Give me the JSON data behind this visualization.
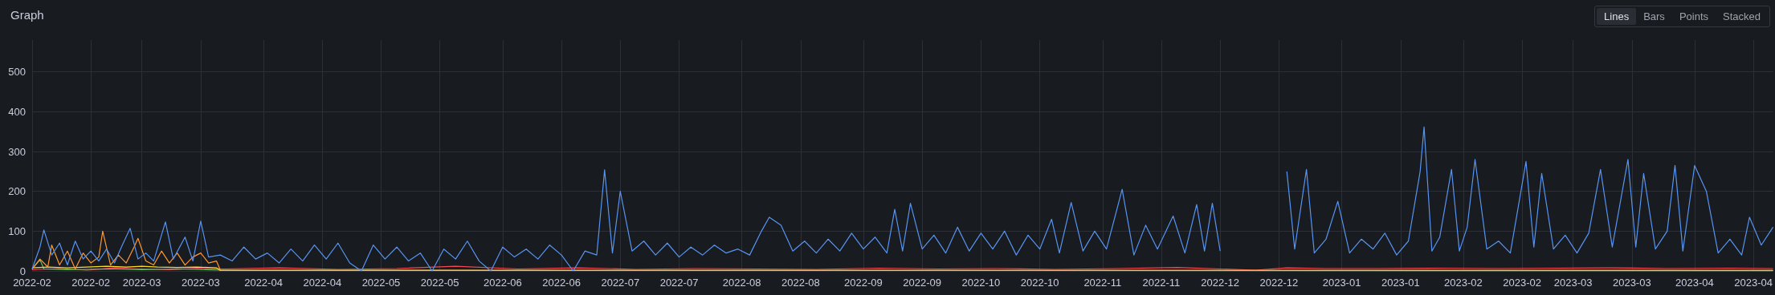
{
  "chart_data": {
    "type": "line",
    "title": "Graph",
    "annotations": [
      "Lines",
      "Bars",
      "Points",
      "Stacked"
    ],
    "xlim": [
      "2022-02-01",
      "2023-04-21"
    ],
    "xticks": [
      {
        "value": "2022-02-01",
        "label": "2022-02"
      },
      {
        "value": "2022-02-16",
        "label": "2022-02"
      },
      {
        "value": "2022-03-01",
        "label": "2022-03"
      },
      {
        "value": "2022-03-16",
        "label": "2022-03"
      },
      {
        "value": "2022-04-01",
        "label": "2022-04"
      },
      {
        "value": "2022-04-16",
        "label": "2022-04"
      },
      {
        "value": "2022-05-01",
        "label": "2022-05"
      },
      {
        "value": "2022-05-16",
        "label": "2022-05"
      },
      {
        "value": "2022-06-01",
        "label": "2022-06"
      },
      {
        "value": "2022-06-16",
        "label": "2022-06"
      },
      {
        "value": "2022-07-01",
        "label": "2022-07"
      },
      {
        "value": "2022-07-16",
        "label": "2022-07"
      },
      {
        "value": "2022-08-01",
        "label": "2022-08"
      },
      {
        "value": "2022-08-16",
        "label": "2022-08"
      },
      {
        "value": "2022-09-01",
        "label": "2022-09"
      },
      {
        "value": "2022-09-16",
        "label": "2022-09"
      },
      {
        "value": "2022-10-01",
        "label": "2022-10"
      },
      {
        "value": "2022-10-16",
        "label": "2022-10"
      },
      {
        "value": "2022-11-01",
        "label": "2022-11"
      },
      {
        "value": "2022-11-16",
        "label": "2022-11"
      },
      {
        "value": "2022-12-01",
        "label": "2022-12"
      },
      {
        "value": "2022-12-16",
        "label": "2022-12"
      },
      {
        "value": "2023-01-01",
        "label": "2023-01"
      },
      {
        "value": "2023-01-16",
        "label": "2023-01"
      },
      {
        "value": "2023-02-01",
        "label": "2023-02"
      },
      {
        "value": "2023-02-16",
        "label": "2023-02"
      },
      {
        "value": "2023-03-01",
        "label": "2023-03"
      },
      {
        "value": "2023-03-16",
        "label": "2023-03"
      },
      {
        "value": "2023-04-01",
        "label": "2023-04"
      },
      {
        "value": "2023-04-16",
        "label": "2023-04"
      }
    ],
    "ylim": [
      0,
      580
    ],
    "yticks": [
      0,
      100,
      200,
      300,
      400,
      500
    ],
    "grid": true,
    "marker": "none",
    "line_style": "solid",
    "series": [
      {
        "color": "#f2495c",
        "x": [
          "2022-02-01",
          "2022-02-08",
          "2022-02-15",
          "2022-02-22",
          "2022-03-01",
          "2022-03-08",
          "2022-03-15",
          "2022-03-22",
          "2022-04-05",
          "2022-04-20",
          "2022-05-05",
          "2022-05-20",
          "2022-06-05",
          "2022-06-20",
          "2022-07-05",
          "2022-07-20",
          "2022-08-05",
          "2022-08-20",
          "2022-09-05",
          "2022-09-20",
          "2022-10-05",
          "2022-10-20",
          "2022-11-05",
          "2022-11-20",
          "2022-12-01",
          "2022-12-10",
          "2022-12-18",
          "2022-12-28",
          "2023-01-10",
          "2023-01-25",
          "2023-02-10",
          "2023-02-25",
          "2023-03-10",
          "2023-03-25",
          "2023-04-10",
          "2023-04-21"
        ],
        "values": [
          3,
          6,
          2,
          8,
          5,
          3,
          7,
          5,
          8,
          4,
          6,
          12,
          5,
          8,
          4,
          6,
          5,
          4,
          7,
          5,
          6,
          4,
          6,
          9,
          5,
          2,
          8,
          6,
          6,
          7,
          6,
          7,
          8,
          6,
          7,
          6
        ]
      },
      {
        "color": "#73bf69",
        "x": [
          "2022-02-01",
          "2022-02-03",
          "2022-02-04",
          "2022-02-10",
          "2022-02-20",
          "2022-03-01",
          "2022-03-10",
          "2022-03-21",
          "2023-04-21"
        ],
        "values": [
          5,
          28,
          5,
          3,
          5,
          3,
          5,
          2,
          0
        ]
      },
      {
        "color": "#fade2a",
        "x": [
          "2022-02-01",
          "2022-02-05",
          "2022-02-10",
          "2022-02-15",
          "2022-02-20",
          "2022-02-25",
          "2022-03-01",
          "2022-03-05",
          "2022-03-10",
          "2022-03-15",
          "2022-03-20",
          "2022-03-21",
          "2022-08-01",
          "2022-12-01",
          "2023-04-21"
        ],
        "values": [
          8,
          10,
          8,
          10,
          12,
          10,
          12,
          10,
          9,
          10,
          8,
          1,
          1,
          1,
          1
        ]
      },
      {
        "color": "#ff9830",
        "x": [
          "2022-02-01",
          "2022-02-03",
          "2022-02-05",
          "2022-02-06",
          "2022-02-08",
          "2022-02-10",
          "2022-02-12",
          "2022-02-14",
          "2022-02-16",
          "2022-02-18",
          "2022-02-19",
          "2022-02-21",
          "2022-02-23",
          "2022-02-25",
          "2022-02-27",
          "2022-02-28",
          "2022-03-02",
          "2022-03-04",
          "2022-03-06",
          "2022-03-08",
          "2022-03-10",
          "2022-03-12",
          "2022-03-14",
          "2022-03-16",
          "2022-03-18",
          "2022-03-20",
          "2022-03-21",
          "2022-04-15",
          "2022-06-01",
          "2022-08-01",
          "2022-10-01",
          "2022-12-01",
          "2023-02-01",
          "2023-04-21"
        ],
        "values": [
          5,
          30,
          10,
          65,
          15,
          50,
          5,
          45,
          20,
          35,
          100,
          15,
          40,
          20,
          60,
          82,
          25,
          15,
          50,
          20,
          45,
          15,
          35,
          45,
          20,
          25,
          2,
          2,
          2,
          2,
          2,
          2,
          2,
          2
        ]
      },
      {
        "color": "#5794f2",
        "x": [
          "2022-02-01",
          "2022-02-03",
          "2022-02-04",
          "2022-02-06",
          "2022-02-08",
          "2022-02-10",
          "2022-02-12",
          "2022-02-14",
          "2022-02-16",
          "2022-02-18",
          "2022-02-20",
          "2022-02-22",
          "2022-02-24",
          "2022-02-26",
          "2022-02-28",
          "2022-03-02",
          "2022-03-04",
          "2022-03-07",
          "2022-03-09",
          "2022-03-12",
          "2022-03-14",
          "2022-03-16",
          "2022-03-18",
          "2022-03-21",
          "2022-03-24",
          "2022-03-27",
          "2022-03-30",
          "2022-04-02",
          "2022-04-05",
          "2022-04-08",
          "2022-04-11",
          "2022-04-14",
          "2022-04-17",
          "2022-04-20",
          "2022-04-23",
          "2022-04-26",
          "2022-04-29",
          "2022-05-02",
          "2022-05-05",
          "2022-05-08",
          "2022-05-11",
          "2022-05-14",
          "2022-05-17",
          "2022-05-20",
          "2022-05-23",
          "2022-05-26",
          "2022-05-29",
          "2022-06-01",
          "2022-06-04",
          "2022-06-07",
          "2022-06-10",
          "2022-06-13",
          "2022-06-16",
          "2022-06-19",
          "2022-06-22",
          "2022-06-25",
          "2022-06-27",
          "2022-06-29",
          "2022-07-01",
          "2022-07-04",
          "2022-07-07",
          "2022-07-10",
          "2022-07-13",
          "2022-07-16",
          "2022-07-19",
          "2022-07-22",
          "2022-07-25",
          "2022-07-28",
          "2022-07-31",
          "2022-08-03",
          "2022-08-06",
          "2022-08-08",
          "2022-08-11",
          "2022-08-14",
          "2022-08-17",
          "2022-08-20",
          "2022-08-23",
          "2022-08-26",
          "2022-08-29",
          "2022-09-01",
          "2022-09-04",
          "2022-09-07",
          "2022-09-09",
          "2022-09-11",
          "2022-09-13",
          "2022-09-16",
          "2022-09-19",
          "2022-09-22",
          "2022-09-25",
          "2022-09-28",
          "2022-10-01",
          "2022-10-04",
          "2022-10-07",
          "2022-10-10",
          "2022-10-13",
          "2022-10-16",
          "2022-10-19",
          "2022-10-21",
          "2022-10-24",
          "2022-10-27",
          "2022-10-30",
          "2022-11-02",
          "2022-11-06",
          "2022-11-09",
          "2022-11-12",
          "2022-11-15",
          "2022-11-19",
          "2022-11-22",
          "2022-11-25",
          "2022-11-27",
          "2022-11-29",
          "2022-12-01",
          "2022-12-10",
          "2022-12-18",
          "2022-12-20",
          "2022-12-23",
          "2022-12-25",
          "2022-12-28",
          "2022-12-31",
          "2023-01-03",
          "2023-01-06",
          "2023-01-09",
          "2023-01-12",
          "2023-01-15",
          "2023-01-18",
          "2023-01-21",
          "2023-01-22",
          "2023-01-24",
          "2023-01-26",
          "2023-01-29",
          "2023-01-31",
          "2023-02-02",
          "2023-02-04",
          "2023-02-07",
          "2023-02-10",
          "2023-02-13",
          "2023-02-17",
          "2023-02-19",
          "2023-02-21",
          "2023-02-24",
          "2023-02-27",
          "2023-03-02",
          "2023-03-05",
          "2023-03-08",
          "2023-03-11",
          "2023-03-15",
          "2023-03-17",
          "2023-03-19",
          "2023-03-22",
          "2023-03-25",
          "2023-03-27",
          "2023-03-29",
          "2023-04-01",
          "2023-04-04",
          "2023-04-07",
          "2023-04-10",
          "2023-04-13",
          "2023-04-15",
          "2023-04-18",
          "2023-04-21"
        ],
        "values": [
          5,
          60,
          103,
          40,
          70,
          15,
          75,
          30,
          50,
          25,
          55,
          20,
          65,
          107,
          30,
          45,
          25,
          123,
          30,
          85,
          25,
          125,
          35,
          40,
          25,
          60,
          30,
          45,
          20,
          55,
          25,
          65,
          30,
          70,
          20,
          0,
          65,
          30,
          60,
          25,
          45,
          0,
          55,
          30,
          75,
          25,
          0,
          60,
          35,
          55,
          30,
          65,
          40,
          0,
          50,
          40,
          254,
          45,
          200,
          50,
          75,
          40,
          70,
          35,
          60,
          40,
          65,
          45,
          55,
          40,
          100,
          135,
          115,
          50,
          75,
          45,
          80,
          50,
          95,
          55,
          85,
          45,
          155,
          50,
          170,
          55,
          90,
          45,
          110,
          50,
          95,
          55,
          100,
          40,
          90,
          55,
          130,
          45,
          172,
          50,
          100,
          55,
          205,
          40,
          115,
          55,
          138,
          45,
          167,
          50,
          170,
          50,
          null,
          250,
          55,
          255,
          45,
          80,
          175,
          45,
          80,
          55,
          95,
          40,
          75,
          250,
          362,
          50,
          85,
          255,
          50,
          110,
          280,
          55,
          75,
          45,
          275,
          60,
          245,
          55,
          90,
          45,
          95,
          255,
          60,
          280,
          60,
          245,
          55,
          100,
          265,
          50,
          265,
          200,
          45,
          80,
          40,
          135,
          65,
          110
        ]
      }
    ]
  }
}
